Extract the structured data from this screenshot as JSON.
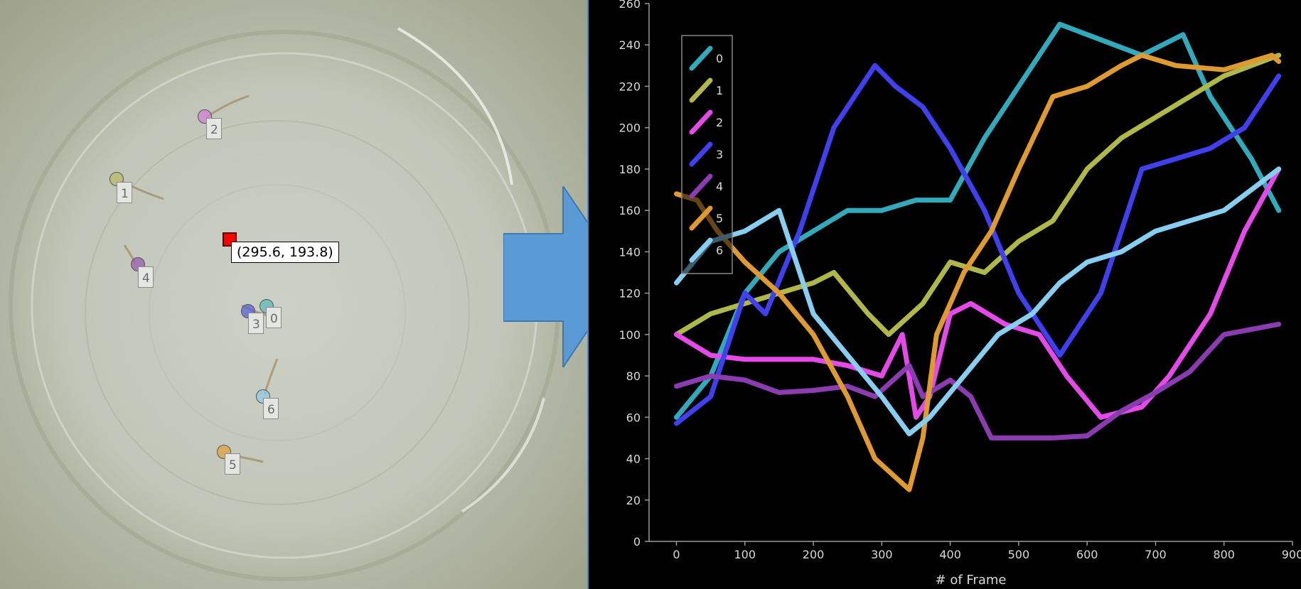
{
  "tracker": {
    "cursor_readout": "(295.6, 193.8)",
    "markers": [
      {
        "id": "0",
        "color": "#5fb8ba"
      },
      {
        "id": "1",
        "color": "#b8bb6a"
      },
      {
        "id": "2",
        "color": "#d37fd6"
      },
      {
        "id": "3",
        "color": "#5a61d4"
      },
      {
        "id": "4",
        "color": "#9a5cb0"
      },
      {
        "id": "5",
        "color": "#e0a23c"
      },
      {
        "id": "6",
        "color": "#92cbe6"
      }
    ]
  },
  "chart_data": {
    "type": "line",
    "xlabel": "# of Frame",
    "ylabel": "",
    "xlim": [
      -40,
      900
    ],
    "ylim": [
      0,
      260
    ],
    "x_ticks": [
      0,
      100,
      200,
      300,
      400,
      500,
      600,
      700,
      800,
      900
    ],
    "y_ticks": [
      0,
      20,
      40,
      60,
      80,
      100,
      120,
      140,
      160,
      180,
      200,
      220,
      240,
      260
    ],
    "legend_position": "top-left",
    "grid": false,
    "series": [
      {
        "name": "0",
        "color": "#33aabb",
        "points": [
          [
            0,
            60
          ],
          [
            50,
            80
          ],
          [
            100,
            120
          ],
          [
            150,
            140
          ],
          [
            200,
            150
          ],
          [
            250,
            160
          ],
          [
            300,
            160
          ],
          [
            350,
            165
          ],
          [
            400,
            165
          ],
          [
            450,
            195
          ],
          [
            500,
            220
          ],
          [
            560,
            250
          ],
          [
            600,
            245
          ],
          [
            680,
            235
          ],
          [
            740,
            245
          ],
          [
            780,
            215
          ],
          [
            840,
            185
          ],
          [
            880,
            160
          ]
        ]
      },
      {
        "name": "1",
        "color": "#b0b84a",
        "points": [
          [
            0,
            100
          ],
          [
            50,
            110
          ],
          [
            100,
            115
          ],
          [
            150,
            120
          ],
          [
            200,
            125
          ],
          [
            230,
            130
          ],
          [
            280,
            110
          ],
          [
            310,
            100
          ],
          [
            360,
            115
          ],
          [
            400,
            135
          ],
          [
            450,
            130
          ],
          [
            500,
            145
          ],
          [
            550,
            155
          ],
          [
            600,
            180
          ],
          [
            650,
            195
          ],
          [
            700,
            205
          ],
          [
            750,
            215
          ],
          [
            800,
            225
          ],
          [
            880,
            235
          ]
        ]
      },
      {
        "name": "2",
        "color": "#e44ae8",
        "points": [
          [
            0,
            100
          ],
          [
            50,
            90
          ],
          [
            100,
            88
          ],
          [
            150,
            88
          ],
          [
            200,
            88
          ],
          [
            250,
            85
          ],
          [
            300,
            80
          ],
          [
            330,
            100
          ],
          [
            350,
            60
          ],
          [
            370,
            70
          ],
          [
            400,
            110
          ],
          [
            430,
            115
          ],
          [
            480,
            105
          ],
          [
            530,
            100
          ],
          [
            570,
            80
          ],
          [
            620,
            60
          ],
          [
            680,
            65
          ],
          [
            720,
            80
          ],
          [
            780,
            110
          ],
          [
            830,
            150
          ],
          [
            880,
            180
          ]
        ]
      },
      {
        "name": "3",
        "color": "#4040ee",
        "points": [
          [
            0,
            57
          ],
          [
            50,
            70
          ],
          [
            100,
            120
          ],
          [
            130,
            110
          ],
          [
            180,
            150
          ],
          [
            230,
            200
          ],
          [
            290,
            230
          ],
          [
            320,
            220
          ],
          [
            360,
            210
          ],
          [
            400,
            190
          ],
          [
            450,
            160
          ],
          [
            500,
            120
          ],
          [
            560,
            90
          ],
          [
            620,
            120
          ],
          [
            680,
            180
          ],
          [
            730,
            185
          ],
          [
            780,
            190
          ],
          [
            830,
            200
          ],
          [
            880,
            225
          ]
        ]
      },
      {
        "name": "4",
        "color": "#8a3cb0",
        "points": [
          [
            0,
            75
          ],
          [
            50,
            80
          ],
          [
            100,
            78
          ],
          [
            150,
            72
          ],
          [
            200,
            73
          ],
          [
            250,
            75
          ],
          [
            290,
            70
          ],
          [
            340,
            85
          ],
          [
            360,
            70
          ],
          [
            400,
            78
          ],
          [
            430,
            70
          ],
          [
            460,
            50
          ],
          [
            500,
            50
          ],
          [
            550,
            50
          ],
          [
            600,
            51
          ],
          [
            650,
            63
          ],
          [
            700,
            72
          ],
          [
            750,
            82
          ],
          [
            800,
            100
          ],
          [
            880,
            105
          ]
        ]
      },
      {
        "name": "5",
        "color": "#e09a32",
        "points": [
          [
            0,
            168
          ],
          [
            30,
            165
          ],
          [
            60,
            150
          ],
          [
            100,
            135
          ],
          [
            150,
            120
          ],
          [
            200,
            100
          ],
          [
            250,
            70
          ],
          [
            290,
            40
          ],
          [
            340,
            25
          ],
          [
            360,
            50
          ],
          [
            380,
            100
          ],
          [
            420,
            130
          ],
          [
            460,
            150
          ],
          [
            500,
            180
          ],
          [
            550,
            215
          ],
          [
            600,
            220
          ],
          [
            650,
            230
          ],
          [
            680,
            235
          ],
          [
            730,
            230
          ],
          [
            800,
            228
          ],
          [
            870,
            235
          ],
          [
            880,
            232
          ]
        ]
      },
      {
        "name": "6",
        "color": "#87cef0",
        "points": [
          [
            0,
            125
          ],
          [
            50,
            145
          ],
          [
            100,
            150
          ],
          [
            150,
            160
          ],
          [
            200,
            110
          ],
          [
            250,
            90
          ],
          [
            300,
            70
          ],
          [
            340,
            52
          ],
          [
            370,
            60
          ],
          [
            420,
            80
          ],
          [
            470,
            100
          ],
          [
            520,
            110
          ],
          [
            560,
            125
          ],
          [
            600,
            135
          ],
          [
            650,
            140
          ],
          [
            700,
            150
          ],
          [
            750,
            155
          ],
          [
            800,
            160
          ],
          [
            880,
            180
          ]
        ]
      }
    ]
  }
}
